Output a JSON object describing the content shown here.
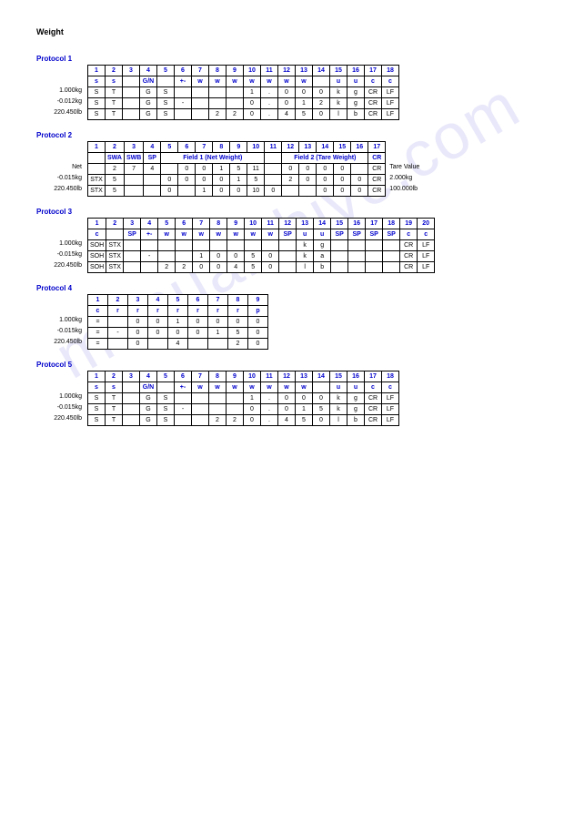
{
  "title": "Weight",
  "watermark": "manualshive.com",
  "p1": {
    "title": "Protocol 1",
    "labels": [
      "1.000kg",
      "-0.012kg",
      "220.450lb"
    ],
    "headers": [
      "1",
      "2",
      "3",
      "4",
      "5",
      "6",
      "7",
      "8",
      "9",
      "10",
      "11",
      "12",
      "13",
      "14",
      "15",
      "16",
      "17",
      "18"
    ],
    "sub": [
      "s",
      "s",
      "",
      "G/N",
      "",
      "+-",
      "w",
      "w",
      "w",
      "w",
      "w",
      "w",
      "w",
      "",
      "u",
      "u",
      "c",
      "c"
    ],
    "rows": [
      [
        "S",
        "T",
        "",
        "G",
        "S",
        "",
        "",
        "",
        "",
        "1",
        ".",
        "0",
        "0",
        "0",
        "k",
        "g",
        "CR",
        "LF"
      ],
      [
        "S",
        "T",
        "",
        "G",
        "S",
        "-",
        "",
        "",
        "",
        "0",
        ".",
        "0",
        "1",
        "2",
        "k",
        "g",
        "CR",
        "LF"
      ],
      [
        "S",
        "T",
        "",
        "G",
        "S",
        "",
        "",
        "2",
        "2",
        "0",
        ".",
        "4",
        "5",
        "0",
        "l",
        "b",
        "CR",
        "LF"
      ]
    ]
  },
  "p2": {
    "title": "Protocol 2",
    "labels": [
      "Net",
      "-0.015kg",
      "220.450lb"
    ],
    "headers": [
      "1",
      "2",
      "3",
      "4",
      "5",
      "6",
      "7",
      "8",
      "9",
      "10",
      "11",
      "12",
      "13",
      "14",
      "15",
      "16",
      "17"
    ],
    "group1": "Field 1 (Net Weight)",
    "group2": "Field 2 (Tare Weight)",
    "sub": [
      "",
      "SWA",
      "SWB",
      "SP",
      "",
      "",
      "",
      "",
      "",
      "",
      "",
      "",
      "",
      "",
      "",
      "",
      "CR"
    ],
    "rows": [
      [
        "",
        "2",
        "7",
        "4",
        "",
        "0",
        "0",
        "1",
        "5",
        "11",
        "",
        "0",
        "0",
        "0",
        "0",
        "",
        "CR"
      ],
      [
        "STX",
        "5",
        "",
        "",
        "0",
        "0",
        "0",
        "0",
        "1",
        "5",
        "",
        "2",
        "0",
        "0",
        "0",
        "0",
        "CR"
      ],
      [
        "STX",
        "5",
        "",
        "",
        "0",
        "",
        "1",
        "0",
        "0",
        "10",
        "0",
        "",
        "",
        "0",
        "0",
        "0",
        "CR"
      ]
    ],
    "extra": [
      "Tare Value",
      "2.000kg",
      "100.000lb"
    ]
  },
  "p3": {
    "title": "Protocol 3",
    "labels": [
      "1.000kg",
      "-0.015kg",
      "220.450lb"
    ],
    "headers": [
      "1",
      "2",
      "3",
      "4",
      "5",
      "6",
      "7",
      "8",
      "9",
      "10",
      "11",
      "12",
      "13",
      "14",
      "15",
      "16",
      "17",
      "18",
      "19",
      "20"
    ],
    "sub": [
      "c",
      "",
      "SP",
      "+-",
      "w",
      "w",
      "w",
      "w",
      "w",
      "w",
      "w",
      "SP",
      "u",
      "u",
      "SP",
      "SP",
      "SP",
      "SP",
      "c",
      "c"
    ],
    "rows": [
      [
        "SOH",
        "STX",
        "",
        "",
        "",
        "",
        "",
        "",
        "",
        "",
        "",
        "",
        "k",
        "g",
        "",
        "",
        "",
        "",
        "CR",
        "LF"
      ],
      [
        "SOH",
        "STX",
        "",
        "-",
        "",
        "",
        "1",
        "0",
        "0",
        "5",
        "0",
        "",
        "k",
        "a",
        "",
        "",
        "",
        "",
        "CR",
        "LF"
      ],
      [
        "SOH",
        "STX",
        "",
        "",
        "2",
        "2",
        "0",
        "0",
        "4",
        "5",
        "0",
        "",
        "l",
        "b",
        "",
        "",
        "",
        "",
        "CR",
        "LF"
      ]
    ]
  },
  "p4": {
    "title": "Protocol 4",
    "labels": [
      "1.000kg",
      "-0.015kg",
      "220.450lb"
    ],
    "headers": [
      "1",
      "2",
      "3",
      "4",
      "5",
      "6",
      "7",
      "8",
      "9"
    ],
    "sub": [
      "c",
      "r",
      "r",
      "r",
      "r",
      "r",
      "r",
      "r",
      "p"
    ],
    "rows": [
      [
        "=",
        "",
        "0",
        "0",
        "1",
        "0",
        "0",
        "0",
        "0"
      ],
      [
        "=",
        "-",
        "0",
        "0",
        "0",
        "0",
        "1",
        "5",
        "0"
      ],
      [
        "=",
        "",
        "0",
        "",
        "4",
        "",
        "",
        "2",
        "0"
      ]
    ]
  },
  "p5": {
    "title": "Protocol 5",
    "labels": [
      "1.000kg",
      "-0.015kg",
      "220.450lb"
    ],
    "headers": [
      "1",
      "2",
      "3",
      "4",
      "5",
      "6",
      "7",
      "8",
      "9",
      "10",
      "11",
      "12",
      "13",
      "14",
      "15",
      "16",
      "17",
      "18"
    ],
    "sub": [
      "s",
      "s",
      "",
      "G/N",
      "",
      "+-",
      "w",
      "w",
      "w",
      "w",
      "w",
      "w",
      "w",
      "",
      "u",
      "u",
      "c",
      "c"
    ],
    "rows": [
      [
        "S",
        "T",
        "",
        "G",
        "S",
        "",
        "",
        "",
        "",
        "1",
        ".",
        "0",
        "0",
        "0",
        "k",
        "g",
        "CR",
        "LF"
      ],
      [
        "S",
        "T",
        "",
        "G",
        "S",
        "-",
        "",
        "",
        "",
        "0",
        ".",
        "0",
        "1",
        "5",
        "k",
        "g",
        "CR",
        "LF"
      ],
      [
        "S",
        "T",
        "",
        "G",
        "S",
        "",
        "",
        "2",
        "2",
        "0",
        ".",
        "4",
        "5",
        "0",
        "l",
        "b",
        "CR",
        "LF"
      ]
    ]
  }
}
